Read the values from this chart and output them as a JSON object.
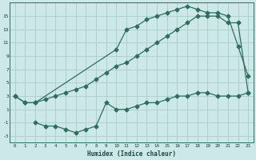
{
  "xlabel": "Humidex (Indice chaleur)",
  "background_color": "#cce8e8",
  "grid_color": "#aacccc",
  "line_color": "#2e6e60",
  "xlim": [
    -0.5,
    23.5
  ],
  "ylim": [
    -4,
    17
  ],
  "xticks": [
    0,
    1,
    2,
    3,
    4,
    5,
    6,
    7,
    8,
    9,
    10,
    11,
    12,
    13,
    14,
    15,
    16,
    17,
    18,
    19,
    20,
    21,
    22,
    23
  ],
  "yticks": [
    -3,
    -1,
    1,
    3,
    5,
    7,
    9,
    11,
    13,
    15
  ],
  "line1_x": [
    0,
    1,
    2,
    10,
    11,
    12,
    13,
    14,
    15,
    16,
    17,
    18,
    19,
    20,
    21,
    22,
    23
  ],
  "line1_y": [
    3,
    2,
    2,
    10,
    13,
    13.5,
    14.5,
    15,
    15.5,
    16,
    16.5,
    16,
    15.5,
    15.5,
    15,
    10.5,
    6
  ],
  "line2_x": [
    0,
    1,
    2,
    3,
    4,
    5,
    6,
    7,
    8,
    9,
    10,
    11,
    12,
    13,
    14,
    15,
    16,
    17,
    18,
    19,
    20,
    21,
    22,
    23
  ],
  "line2_y": [
    3,
    2,
    2,
    2.5,
    3,
    3.5,
    4,
    4.5,
    5.5,
    6.5,
    7.5,
    8,
    9,
    10,
    11,
    12,
    13,
    14,
    15,
    15,
    15,
    14,
    14,
    3.5
  ],
  "line3_x": [
    2,
    3,
    4,
    5,
    6,
    7,
    8,
    9,
    10,
    11,
    12,
    13,
    14,
    15,
    16,
    17,
    18,
    19,
    20,
    21,
    22,
    23
  ],
  "line3_y": [
    -1,
    -1.5,
    -1.5,
    -2,
    -2.5,
    -2,
    -1.5,
    2,
    1,
    1,
    1.5,
    2,
    2,
    2.5,
    3,
    3,
    3.5,
    3.5,
    3,
    3,
    3,
    3.5
  ]
}
